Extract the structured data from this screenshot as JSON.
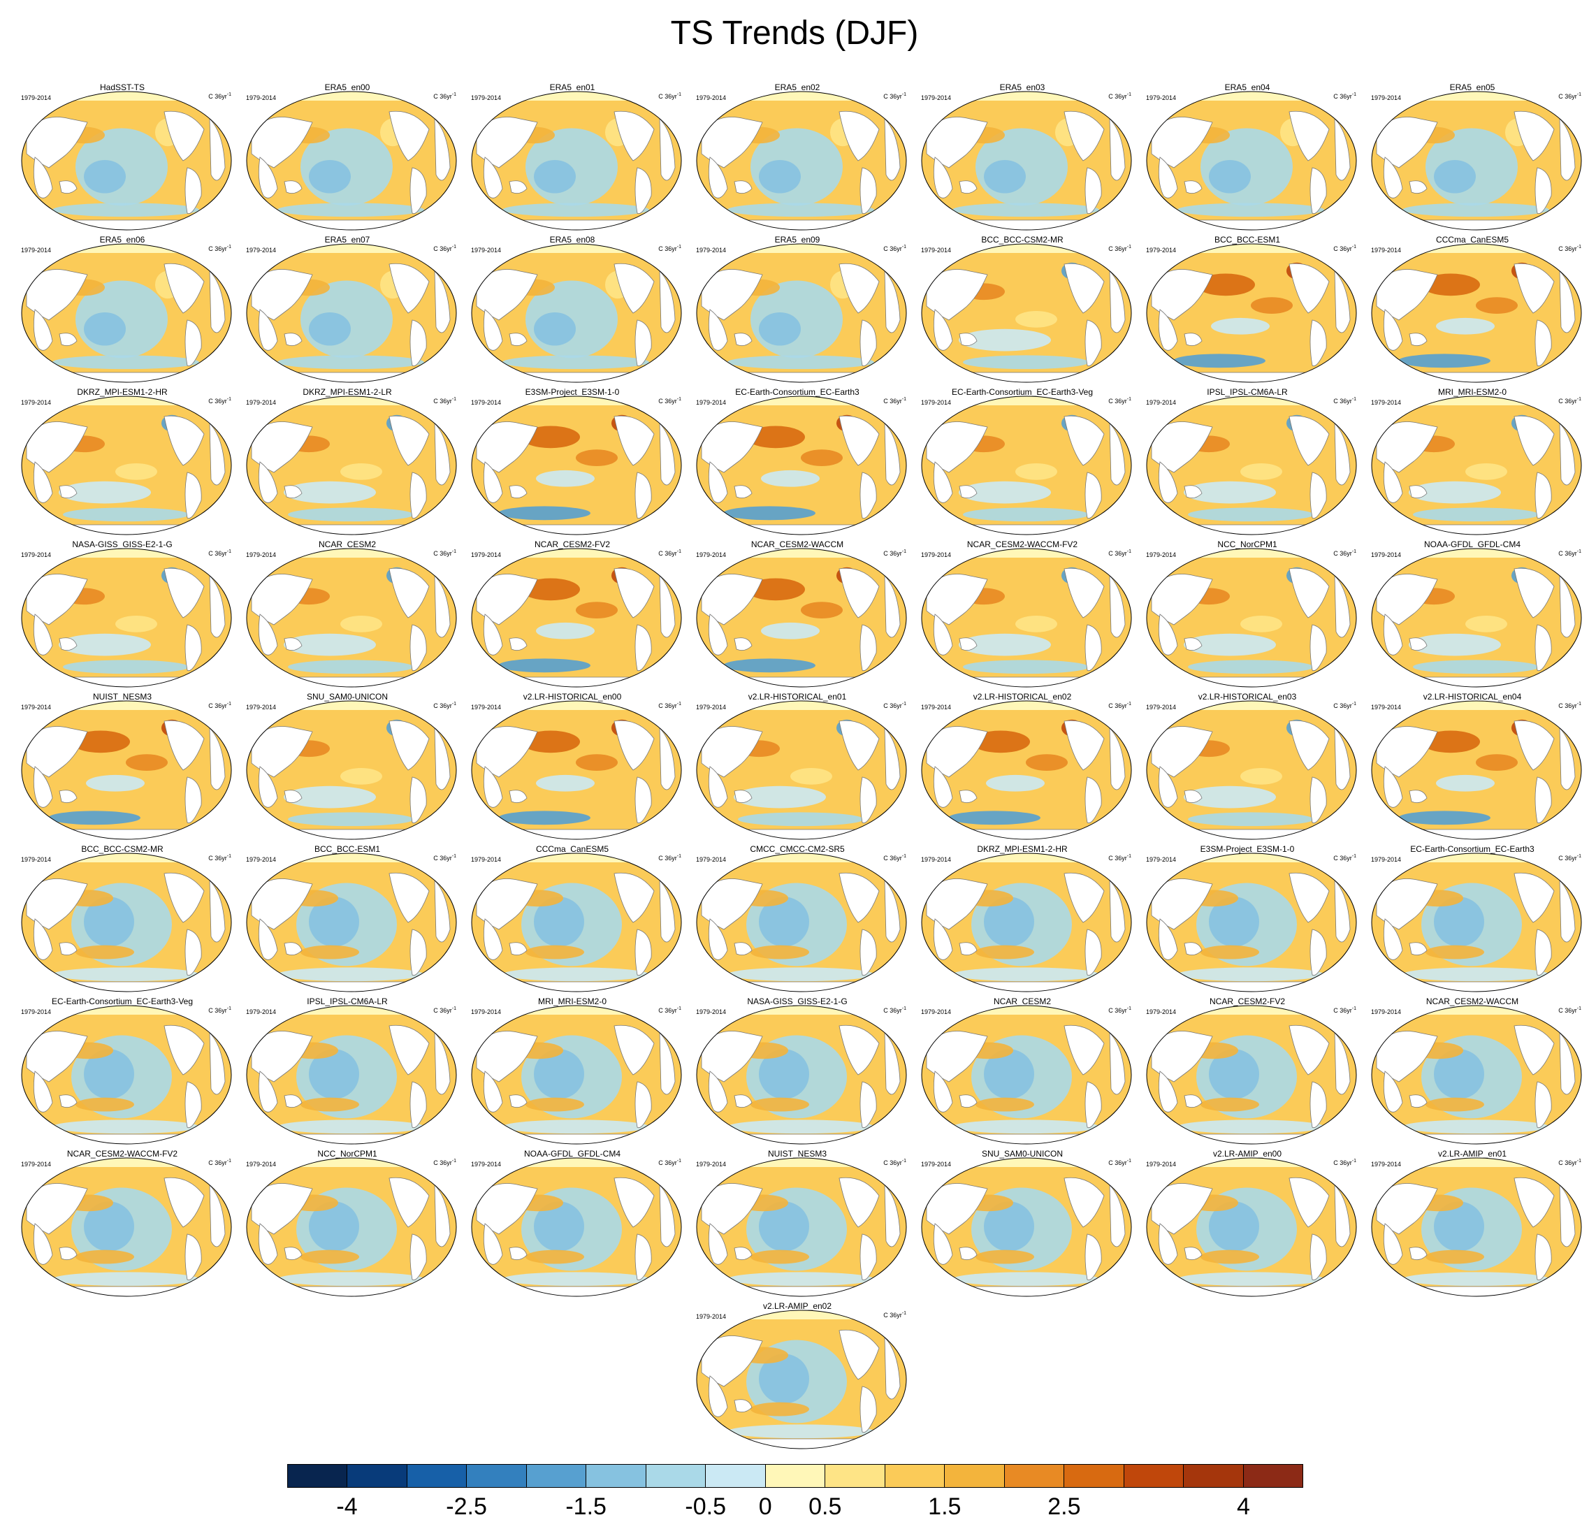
{
  "title": "TS Trends (DJF)",
  "years_label": "1979-2014",
  "units_label": "C 36yr",
  "units_sup": "-1",
  "panels": [
    {
      "name": "HadSST-TS",
      "style": "obs"
    },
    {
      "name": "ERA5_en00",
      "style": "obs"
    },
    {
      "name": "ERA5_en01",
      "style": "obs"
    },
    {
      "name": "ERA5_en02",
      "style": "obs"
    },
    {
      "name": "ERA5_en03",
      "style": "obs"
    },
    {
      "name": "ERA5_en04",
      "style": "obs"
    },
    {
      "name": "ERA5_en05",
      "style": "obs"
    },
    {
      "name": "ERA5_en06",
      "style": "obs"
    },
    {
      "name": "ERA5_en07",
      "style": "obs"
    },
    {
      "name": "ERA5_en08",
      "style": "obs"
    },
    {
      "name": "ERA5_en09",
      "style": "obs"
    },
    {
      "name": "BCC_BCC-CSM2-MR",
      "style": "hist"
    },
    {
      "name": "BCC_BCC-ESM1",
      "style": "histwarm"
    },
    {
      "name": "CCCma_CanESM5",
      "style": "histwarm"
    },
    {
      "name": "DKRZ_MPI-ESM1-2-HR",
      "style": "hist"
    },
    {
      "name": "DKRZ_MPI-ESM1-2-LR",
      "style": "hist"
    },
    {
      "name": "E3SM-Project_E3SM-1-0",
      "style": "histwarm"
    },
    {
      "name": "EC-Earth-Consortium_EC-Earth3",
      "style": "histwarm"
    },
    {
      "name": "EC-Earth-Consortium_EC-Earth3-Veg",
      "style": "hist"
    },
    {
      "name": "IPSL_IPSL-CM6A-LR",
      "style": "hist"
    },
    {
      "name": "MRI_MRI-ESM2-0",
      "style": "hist"
    },
    {
      "name": "NASA-GISS_GISS-E2-1-G",
      "style": "hist"
    },
    {
      "name": "NCAR_CESM2",
      "style": "hist"
    },
    {
      "name": "NCAR_CESM2-FV2",
      "style": "histwarm"
    },
    {
      "name": "NCAR_CESM2-WACCM",
      "style": "histwarm"
    },
    {
      "name": "NCAR_CESM2-WACCM-FV2",
      "style": "hist"
    },
    {
      "name": "NCC_NorCPM1",
      "style": "hist"
    },
    {
      "name": "NOAA-GFDL_GFDL-CM4",
      "style": "hist"
    },
    {
      "name": "NUIST_NESM3",
      "style": "histwarm"
    },
    {
      "name": "SNU_SAM0-UNICON",
      "style": "hist"
    },
    {
      "name": "v2.LR-HISTORICAL_en00",
      "style": "histwarm"
    },
    {
      "name": "v2.LR-HISTORICAL_en01",
      "style": "hist"
    },
    {
      "name": "v2.LR-HISTORICAL_en02",
      "style": "histwarm"
    },
    {
      "name": "v2.LR-HISTORICAL_en03",
      "style": "hist"
    },
    {
      "name": "v2.LR-HISTORICAL_en04",
      "style": "histwarm"
    },
    {
      "name": "BCC_BCC-CSM2-MR",
      "style": "amip"
    },
    {
      "name": "BCC_BCC-ESM1",
      "style": "amip"
    },
    {
      "name": "CCCma_CanESM5",
      "style": "amip"
    },
    {
      "name": "CMCC_CMCC-CM2-SR5",
      "style": "amip"
    },
    {
      "name": "DKRZ_MPI-ESM1-2-HR",
      "style": "amip"
    },
    {
      "name": "E3SM-Project_E3SM-1-0",
      "style": "amip"
    },
    {
      "name": "EC-Earth-Consortium_EC-Earth3",
      "style": "amip"
    },
    {
      "name": "EC-Earth-Consortium_EC-Earth3-Veg",
      "style": "amip"
    },
    {
      "name": "IPSL_IPSL-CM6A-LR",
      "style": "amip"
    },
    {
      "name": "MRI_MRI-ESM2-0",
      "style": "amip"
    },
    {
      "name": "NASA-GISS_GISS-E2-1-G",
      "style": "amip"
    },
    {
      "name": "NCAR_CESM2",
      "style": "amip"
    },
    {
      "name": "NCAR_CESM2-FV2",
      "style": "amip"
    },
    {
      "name": "NCAR_CESM2-WACCM",
      "style": "amip"
    },
    {
      "name": "NCAR_CESM2-WACCM-FV2",
      "style": "amip"
    },
    {
      "name": "NCC_NorCPM1",
      "style": "amip"
    },
    {
      "name": "NOAA-GFDL_GFDL-CM4",
      "style": "amip"
    },
    {
      "name": "NUIST_NESM3",
      "style": "amip"
    },
    {
      "name": "SNU_SAM0-UNICON",
      "style": "amip"
    },
    {
      "name": "v2.LR-AMIP_en00",
      "style": "amip"
    },
    {
      "name": "v2.LR-AMIP_en01",
      "style": "amip"
    },
    {
      "name": "v2.LR-AMIP_en02",
      "style": "amip"
    }
  ],
  "colorbar": {
    "colors": [
      "#08254f",
      "#083b7a",
      "#1760a8",
      "#3380be",
      "#57a0d0",
      "#86c2e0",
      "#aad9e8",
      "#cbe9f4",
      "#fff7b8",
      "#fee486",
      "#fbcb58",
      "#f3b43c",
      "#e88a24",
      "#d86a11",
      "#c0470b",
      "#a5360c",
      "#8c2a16"
    ],
    "tick_labels": [
      "-4",
      "-2.5",
      "-1.5",
      "-0.5",
      "0",
      "0.5",
      "1.5",
      "2.5",
      "4"
    ],
    "tick_boundaries": [
      1,
      3,
      5,
      7,
      8,
      9,
      11,
      13,
      16
    ]
  }
}
